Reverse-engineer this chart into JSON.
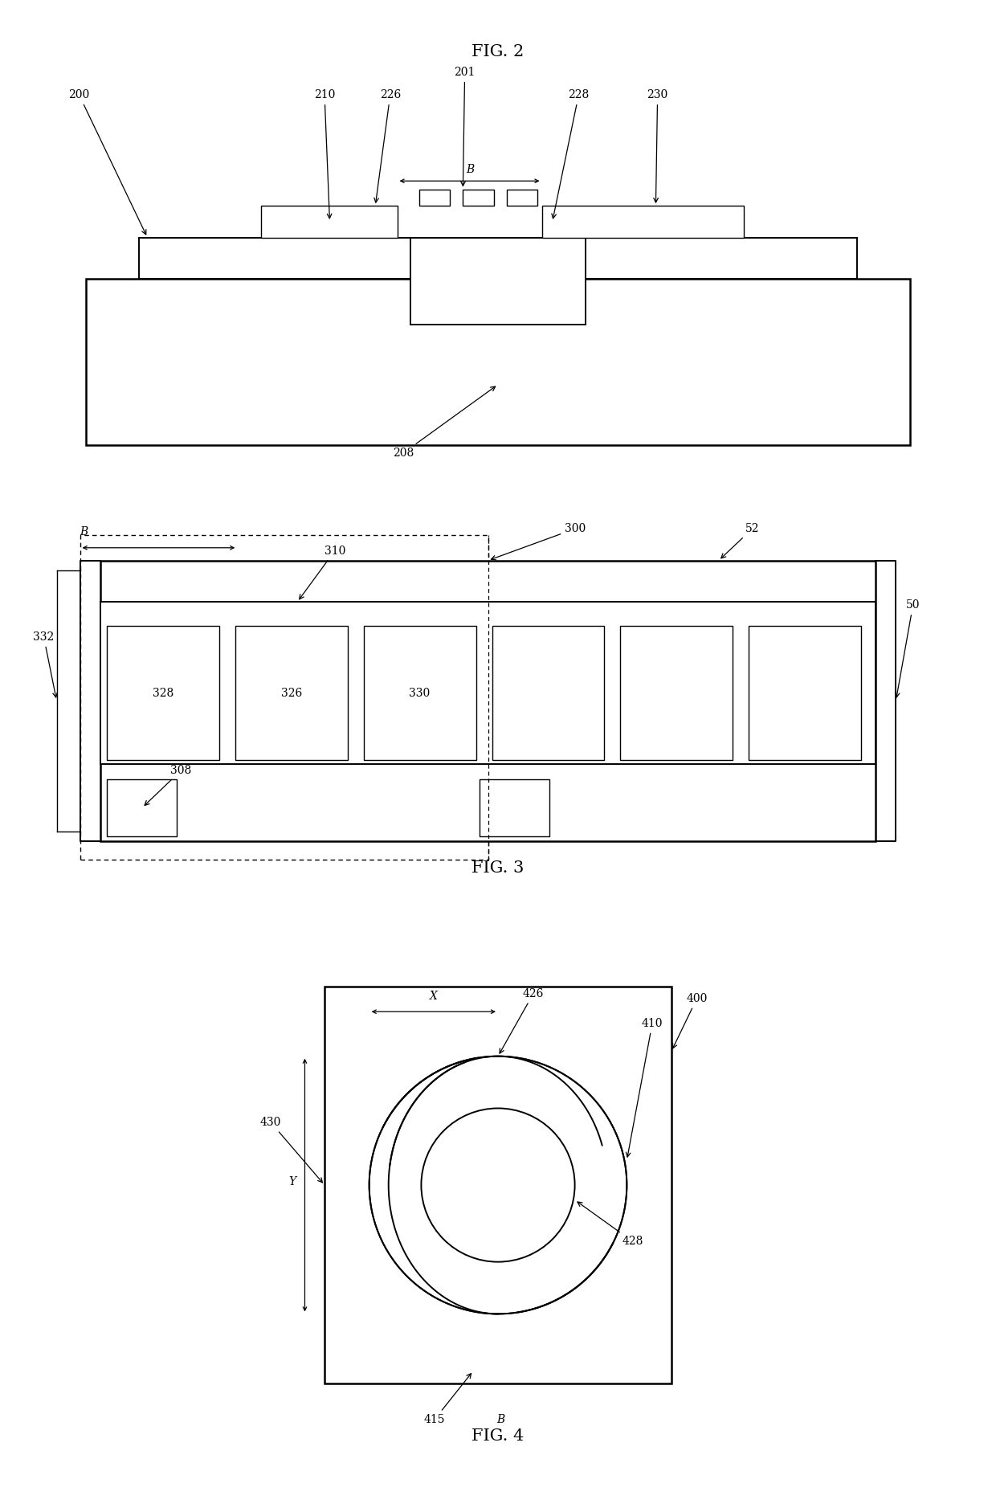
{
  "bg_color": "#ffffff",
  "line_color": "#000000",
  "fig2_title": "FIG. 2",
  "fig3_title": "FIG. 3",
  "fig4_title": "FIG. 4"
}
